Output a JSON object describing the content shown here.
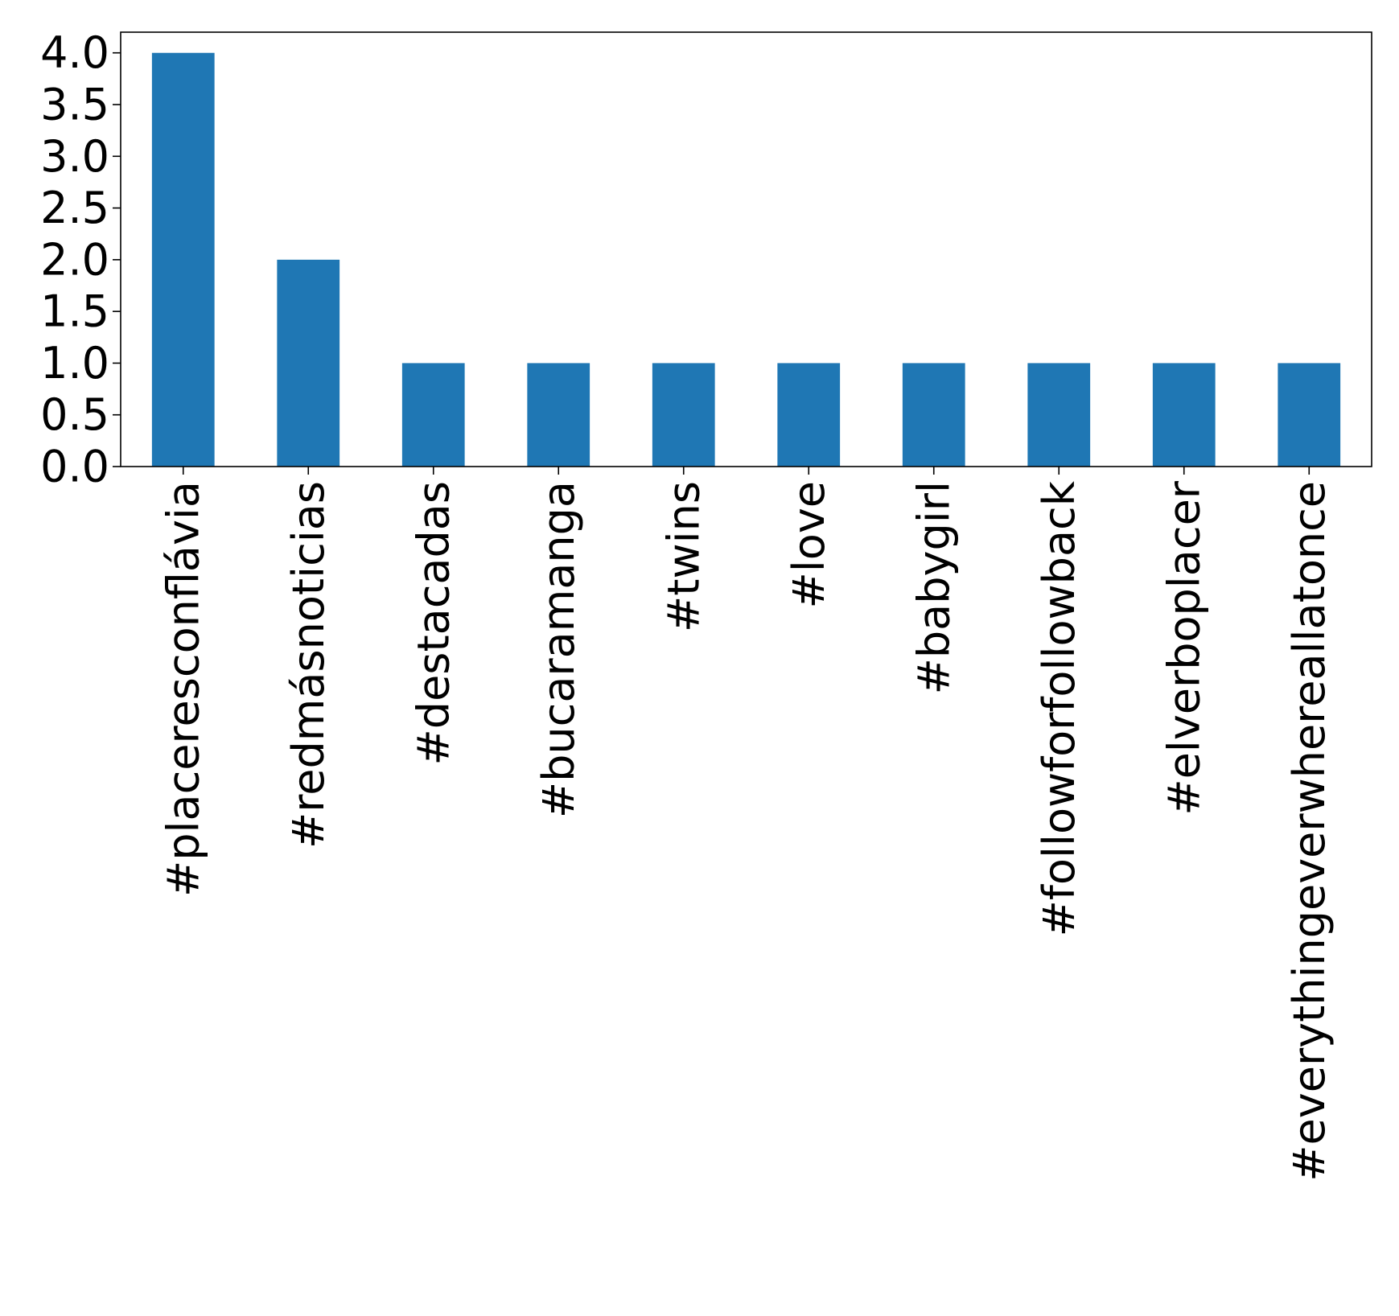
{
  "chart_data": {
    "type": "bar",
    "categories": [
      "#placeresconflávia",
      "#redmásnoticias",
      "#destacadas",
      "#bucaramanga",
      "#twins",
      "#love",
      "#babygirl",
      "#followforfollowback",
      "#elverboplacer",
      "#everythingeverwhereallatonce"
    ],
    "values": [
      4,
      2,
      1,
      1,
      1,
      1,
      1,
      1,
      1,
      1
    ],
    "ylim": [
      0,
      4.2
    ],
    "yticks": [
      0.0,
      0.5,
      1.0,
      1.5,
      2.0,
      2.5,
      3.0,
      3.5,
      4.0
    ],
    "ytick_labels": [
      "0.0",
      "0.5",
      "1.0",
      "1.5",
      "2.0",
      "2.5",
      "3.0",
      "3.5",
      "4.0"
    ],
    "title": "",
    "xlabel": "",
    "ylabel": "",
    "grid": false,
    "bar_color": "#1f77b4"
  }
}
